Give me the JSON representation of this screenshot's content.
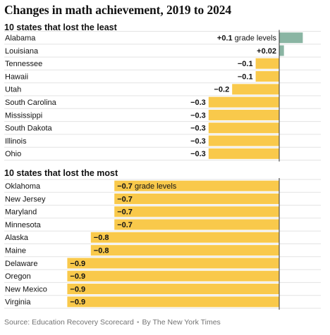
{
  "title": "Changes in math achievement, 2019 to 2024",
  "source": "Source: Education Recovery Scorecard",
  "byline": "By The New York Times",
  "chart_data": [
    {
      "type": "bar",
      "orientation": "horizontal",
      "title": "10 states that lost the least",
      "unit_label": "grade levels",
      "categories": [
        "Alabama",
        "Louisiana",
        "Tennessee",
        "Hawaii",
        "Utah",
        "South Carolina",
        "Mississippi",
        "South Dakota",
        "Illinois",
        "Ohio"
      ],
      "values": [
        0.1,
        0.02,
        -0.1,
        -0.1,
        -0.2,
        -0.3,
        -0.3,
        -0.3,
        -0.3,
        -0.3
      ],
      "labels": [
        "+0.1",
        "+0.02",
        "−0.1",
        "−0.1",
        "−0.2",
        "−0.3",
        "−0.3",
        "−0.3",
        "−0.3",
        "−0.3"
      ],
      "colors": {
        "positive": "#8ab5a3",
        "negative": "#f9c94b"
      }
    },
    {
      "type": "bar",
      "orientation": "horizontal",
      "title": "10 states that lost the most",
      "unit_label": "grade levels",
      "categories": [
        "Oklahoma",
        "New Jersey",
        "Maryland",
        "Minnesota",
        "Alaska",
        "Maine",
        "Delaware",
        "Oregon",
        "New Mexico",
        "Virginia"
      ],
      "values": [
        -0.7,
        -0.7,
        -0.7,
        -0.7,
        -0.8,
        -0.8,
        -0.9,
        -0.9,
        -0.9,
        -0.9
      ],
      "labels": [
        "−0.7",
        "−0.7",
        "−0.7",
        "−0.7",
        "−0.8",
        "−0.8",
        "−0.9",
        "−0.9",
        "−0.9",
        "−0.9"
      ],
      "colors": {
        "positive": "#8ab5a3",
        "negative": "#f9c94b"
      }
    }
  ]
}
